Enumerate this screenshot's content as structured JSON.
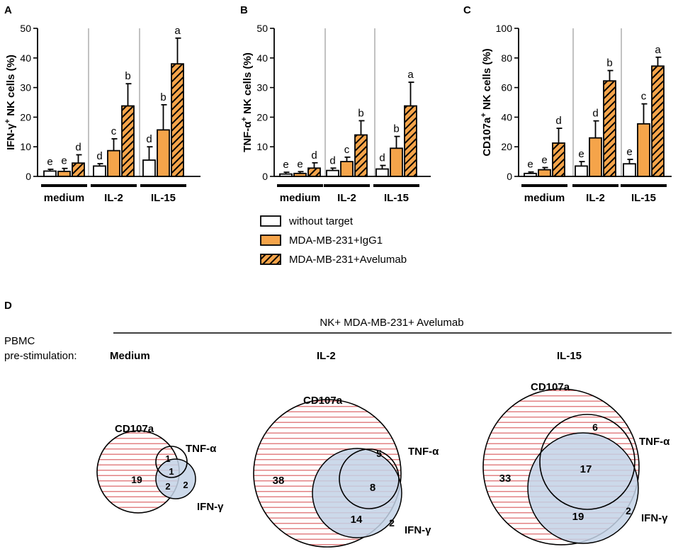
{
  "figure": {
    "colors": {
      "orange": "#F5A44A",
      "blue": "#C3D2E6",
      "red_text": "#9B2B23",
      "blue_text": "#2E7FA0",
      "stripe": "#E0797B"
    }
  },
  "chart_data": [
    {
      "panel": "A",
      "type": "bar",
      "ylabel": "IFN-γ+ NK cells (%)",
      "ylabel_parts": {
        "pre": "IFN-",
        "greek": "γ",
        "sup": "+",
        "post": " NK cells (%)"
      },
      "ylim": [
        0,
        50
      ],
      "yticks": [
        0,
        10,
        20,
        30,
        40,
        50
      ],
      "groups": [
        "medium",
        "IL-2",
        "IL-15"
      ],
      "series": [
        {
          "name": "without target",
          "values": [
            1.8,
            3.5,
            5.5
          ],
          "errors": [
            0.6,
            0.8,
            4.5
          ]
        },
        {
          "name": "MDA-MB-231+IgG1",
          "values": [
            1.7,
            8.7,
            15.7
          ],
          "errors": [
            1.0,
            4.0,
            8.5
          ]
        },
        {
          "name": "MDA-MB-231+Avelumab",
          "values": [
            4.5,
            23.8,
            38.0
          ],
          "errors": [
            2.8,
            7.5,
            8.7
          ]
        }
      ],
      "letters": [
        [
          "e",
          "e",
          "d"
        ],
        [
          "d",
          "c",
          "b"
        ],
        [
          "d",
          "b",
          "a"
        ]
      ]
    },
    {
      "panel": "B",
      "type": "bar",
      "ylabel": "TNF-α+ NK cells (%)",
      "ylabel_parts": {
        "pre": "TNF-",
        "greek": "α",
        "sup": "+",
        "post": " NK cells (%)"
      },
      "ylim": [
        0,
        50
      ],
      "yticks": [
        0,
        10,
        20,
        30,
        40,
        50
      ],
      "groups": [
        "medium",
        "IL-2",
        "IL-15"
      ],
      "series": [
        {
          "name": "without target",
          "values": [
            0.8,
            2.0,
            2.5
          ],
          "errors": [
            0.6,
            0.8,
            1.2
          ]
        },
        {
          "name": "MDA-MB-231+IgG1",
          "values": [
            1.0,
            5.0,
            9.5
          ],
          "errors": [
            0.6,
            1.5,
            4.0
          ]
        },
        {
          "name": "MDA-MB-231+Avelumab",
          "values": [
            2.8,
            14.0,
            23.8
          ],
          "errors": [
            1.8,
            4.8,
            8.0
          ]
        }
      ],
      "letters": [
        [
          "e",
          "e",
          "d"
        ],
        [
          "d",
          "c",
          "b"
        ],
        [
          "d",
          "b",
          "a"
        ]
      ]
    },
    {
      "panel": "C",
      "type": "bar",
      "ylabel": "CD107a+ NK cells (%)",
      "ylabel_parts": {
        "pre": "CD107a",
        "greek": "",
        "sup": "+",
        "post": " NK cells (%)"
      },
      "ylim": [
        0,
        100
      ],
      "yticks": [
        0,
        20,
        40,
        60,
        80,
        100
      ],
      "groups": [
        "medium",
        "IL-2",
        "IL-15"
      ],
      "series": [
        {
          "name": "without target",
          "values": [
            2.0,
            7.0,
            8.5
          ],
          "errors": [
            1.0,
            3.0,
            3.0
          ]
        },
        {
          "name": "MDA-MB-231+IgG1",
          "values": [
            4.5,
            26.0,
            35.5
          ],
          "errors": [
            1.5,
            11.5,
            13.5
          ]
        },
        {
          "name": "MDA-MB-231+Avelumab",
          "values": [
            22.5,
            64.5,
            74.5
          ],
          "errors": [
            10.0,
            7.0,
            6.0
          ]
        }
      ],
      "letters": [
        [
          "e",
          "e",
          "d"
        ],
        [
          "e",
          "d",
          "b"
        ],
        [
          "e",
          "c",
          "a"
        ]
      ]
    },
    {
      "panel": "D",
      "type": "venn",
      "header": "NK+ MDA-MB-231+ Avelumab",
      "row_label_line1": "PBMC",
      "row_label_line2": "pre-stimulation:",
      "sets": [
        "CD107a",
        "TNF-α",
        "IFN-γ"
      ],
      "conditions": [
        {
          "name": "Medium",
          "regions": {
            "cd107a_only": 19,
            "cd107a_tnf": 1,
            "all_three": 1,
            "cd107a_ifn": 2,
            "ifn_only": 2
          }
        },
        {
          "name": "IL-2",
          "regions": {
            "cd107a_only": 38,
            "cd107a_tnf": 5,
            "all_three": 8,
            "cd107a_ifn": 14,
            "ifn_only": 2
          }
        },
        {
          "name": "IL-15",
          "regions": {
            "cd107a_only": 33,
            "cd107a_tnf": 6,
            "all_three": 17,
            "cd107a_ifn": 19,
            "ifn_only": 2
          }
        }
      ]
    }
  ],
  "legend": {
    "items": [
      "without target",
      "MDA-MB-231+IgG1",
      "MDA-MB-231+Avelumab"
    ]
  },
  "panel_letters": [
    "A",
    "B",
    "C",
    "D"
  ]
}
